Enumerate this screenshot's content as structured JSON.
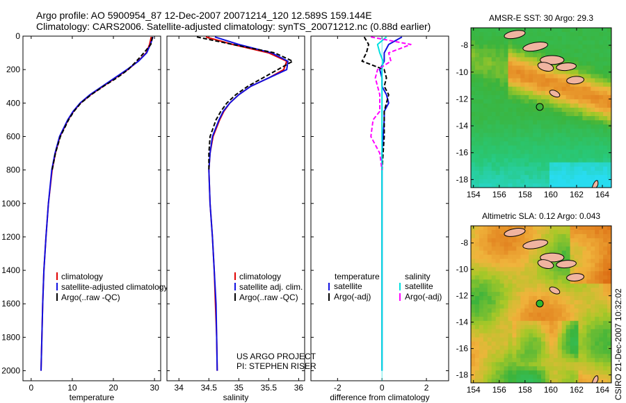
{
  "header": {
    "line1": "Argo profile: AO 5900954_87 12-Dec-2007 20071214_120 12.589S 159.144E",
    "line2": "Climatology: CARS2006. Satellite-adjusted climatology: synTS_20071212.nc (0.88d earlier)"
  },
  "side_label": "CSIRO 21-Dec-2007 10:32:02",
  "colors": {
    "climatology": "#e00000",
    "satellite": "#1010e0",
    "argo": "#000000",
    "sat_diff": "#00e0e0",
    "argo_sal_diff": "#ff00ff"
  },
  "chart_data": [
    {
      "type": "line",
      "xlabel": "temperature",
      "xlim": [
        -2,
        31.5
      ],
      "xticks": [
        0,
        10,
        20,
        30
      ],
      "ylim": [
        2060,
        0
      ],
      "yticks": [
        0,
        200,
        400,
        600,
        800,
        1000,
        1200,
        1400,
        1600,
        1800,
        2000
      ],
      "depth": [
        5,
        50,
        100,
        150,
        200,
        250,
        300,
        350,
        400,
        450,
        500,
        600,
        700,
        800,
        1000,
        1200,
        1400,
        1600,
        1800,
        2000
      ],
      "series": [
        {
          "name": "climatology",
          "color": "#e00000",
          "values": [
            29.2,
            28.8,
            28.0,
            26.0,
            23.5,
            20.5,
            17.5,
            14.5,
            12.0,
            10.3,
            9.0,
            7.0,
            5.9,
            5.1,
            4.2,
            3.6,
            3.1,
            2.8,
            2.6,
            2.4
          ]
        },
        {
          "name": "satellite-adjusted climatology",
          "color": "#1010e0",
          "values": [
            29.6,
            29.0,
            28.1,
            26.1,
            23.3,
            20.3,
            17.3,
            14.3,
            11.9,
            10.2,
            8.9,
            6.9,
            5.8,
            5.0,
            4.2,
            3.6,
            3.1,
            2.8,
            2.6,
            2.4
          ]
        },
        {
          "name": "Argo(..raw -QC)",
          "color": "#000000",
          "dash": "6 3",
          "values": [
            29.5,
            29.1,
            27.4,
            25.6,
            23.6,
            20.8,
            17.6,
            14.6,
            12.1,
            10.4,
            9.1,
            7.1,
            5.9,
            5.1,
            null,
            null,
            null,
            null,
            null,
            null
          ]
        }
      ],
      "legend": [
        "climatology",
        "satellite-adjusted climatology",
        "Argo(..raw -QC)"
      ]
    },
    {
      "type": "line",
      "xlabel": "salinity",
      "xlim": [
        33.8,
        36.1
      ],
      "xticks": [
        34,
        34.5,
        35,
        35.5,
        36
      ],
      "ylim": [
        2060,
        0
      ],
      "depth": [
        5,
        50,
        100,
        150,
        200,
        250,
        300,
        350,
        400,
        450,
        500,
        600,
        700,
        800,
        1000,
        1200,
        1400,
        1600,
        1800,
        2000
      ],
      "series": [
        {
          "name": "climatology",
          "color": "#e00000",
          "values": [
            34.45,
            34.9,
            35.5,
            35.8,
            35.75,
            35.5,
            35.2,
            35.0,
            34.85,
            34.75,
            34.68,
            34.57,
            34.52,
            34.5,
            34.52,
            34.56,
            34.59,
            34.61,
            34.63,
            34.64
          ]
        },
        {
          "name": "satellite adj. clim.",
          "color": "#1010e0",
          "values": [
            34.6,
            35.0,
            35.55,
            35.82,
            35.8,
            35.5,
            35.2,
            35.0,
            34.85,
            34.74,
            34.67,
            34.56,
            34.52,
            34.5,
            34.52,
            34.56,
            34.59,
            34.62,
            34.63,
            34.64
          ]
        },
        {
          "name": "Argo(..raw -QC)",
          "color": "#000000",
          "dash": "6 3",
          "values": [
            34.3,
            34.9,
            35.6,
            35.9,
            35.65,
            35.4,
            35.15,
            34.95,
            34.8,
            34.7,
            34.62,
            34.52,
            34.5,
            34.5,
            null,
            null,
            null,
            null,
            null,
            null
          ]
        }
      ],
      "legend": [
        "climatology",
        "satellite adj. clim.",
        "Argo(..raw -QC)"
      ]
    },
    {
      "type": "line",
      "xlabel": "difference from climatology",
      "xlim": [
        -3.2,
        3.0
      ],
      "xticks": [
        -2,
        0,
        2
      ],
      "ylim": [
        2060,
        0
      ],
      "depth": [
        5,
        50,
        100,
        150,
        200,
        250,
        300,
        350,
        400,
        450,
        500,
        600,
        700,
        800,
        1000,
        1200,
        1400,
        1600,
        1800,
        2000
      ],
      "series": [
        {
          "name": "temperature satellite",
          "color": "#1010e0",
          "values": [
            0.9,
            0.3,
            0.1,
            0.1,
            -0.1,
            0.0,
            0.0,
            0.2,
            0.3,
            0.1,
            0.1,
            0.05,
            0.0,
            0.0,
            0.0,
            0.0,
            0.0,
            0.0,
            0.0,
            0.0
          ]
        },
        {
          "name": "temperature Argo(-adj)",
          "color": "#000000",
          "dash": "6 3",
          "values": [
            -0.8,
            -0.6,
            -0.7,
            -0.9,
            0.1,
            0.2,
            0.1,
            0.3,
            0.2,
            0.1,
            0.1,
            0.1,
            0.05,
            0.0,
            null,
            null,
            null,
            null,
            null,
            null
          ]
        },
        {
          "name": "salinity satellite",
          "color": "#00e0e0",
          "values": [
            0.2,
            -0.2,
            -0.1,
            0.05,
            0.0,
            0.0,
            0.0,
            0.0,
            0.0,
            0.0,
            0.0,
            0.0,
            0.0,
            0.0,
            0.0,
            0.0,
            0.0,
            0.0,
            0.0,
            0.0
          ]
        },
        {
          "name": "salinity Argo(-adj)",
          "color": "#ff00ff",
          "dash": "6 3",
          "values": [
            -0.5,
            1.3,
            0.3,
            0.4,
            -0.2,
            -0.3,
            -0.2,
            -0.1,
            -0.1,
            -0.1,
            -0.4,
            -0.5,
            -0.1,
            0.0,
            null,
            null,
            null,
            null,
            null,
            null
          ]
        }
      ],
      "legend_left": {
        "title": "temperature",
        "items": [
          "satellite",
          "Argo(-adj)"
        ]
      },
      "legend_right": {
        "title": "salinity",
        "items": [
          "satellite",
          "Argo(-adj)"
        ]
      },
      "note1": "US ARGO PROJECT",
      "note2": "PI: STEPHEN RISER"
    },
    {
      "type": "heatmap",
      "title": "AMSR-E SST: 30 Argo: 29.3",
      "xlim": [
        153.8,
        164.7
      ],
      "ylim": [
        -18.6,
        -6.7
      ],
      "xticks": [
        154,
        156,
        158,
        160,
        162,
        164
      ],
      "yticks": [
        -8,
        -10,
        -12,
        -14,
        -16,
        -18
      ],
      "argo_position": {
        "lon": 159.144,
        "lat": -12.589
      }
    },
    {
      "type": "heatmap",
      "title": "Altimetric SLA: 0.12 Argo: 0.043",
      "xlim": [
        153.8,
        164.7
      ],
      "ylim": [
        -18.6,
        -6.7
      ],
      "xticks": [
        154,
        156,
        158,
        160,
        162,
        164
      ],
      "yticks": [
        -8,
        -10,
        -12,
        -14,
        -16,
        -18
      ],
      "argo_position": {
        "lon": 159.144,
        "lat": -12.589
      }
    }
  ]
}
